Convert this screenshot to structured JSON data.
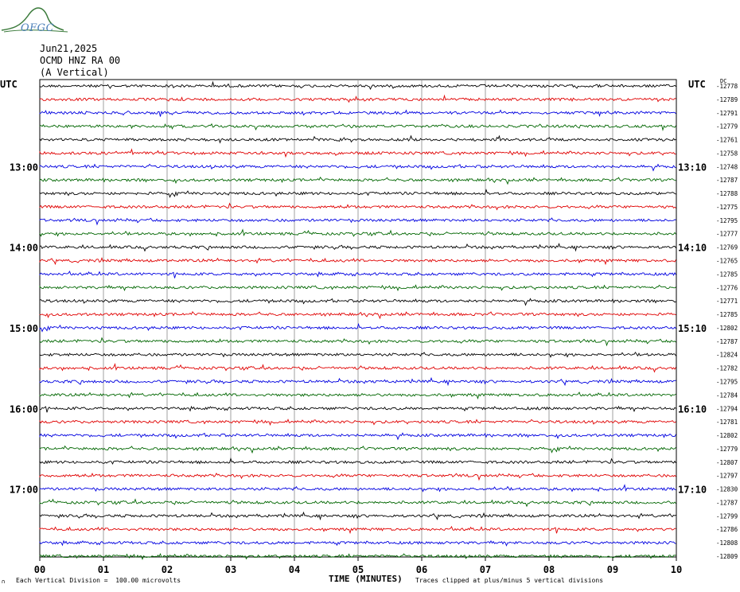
{
  "header": {
    "logo_text": "OFGC",
    "date": "Jun21,2025",
    "station": "OCMD HNZ RA 00",
    "component": "(A Vertical)"
  },
  "axes": {
    "left_unit": "UTC",
    "right_unit": "UTC",
    "x_title": "TIME (MINUTES)"
  },
  "footer": {
    "scale_note": "Each Vertical Division =  100.00 microvolts",
    "clip_note": "Traces clipped at plus/minus 5 vertical divisions",
    "corner_mark": "∩"
  },
  "colors": [
    "#000000",
    "#e00000",
    "#0000e0",
    "#006600"
  ],
  "chart_data": {
    "type": "line",
    "title": "",
    "x_ticks": [
      "00",
      "01",
      "02",
      "03",
      "04",
      "05",
      "06",
      "07",
      "08",
      "09",
      "10"
    ],
    "xlim": [
      0,
      10
    ],
    "left_hour_labels": [
      "13:00",
      "14:00",
      "15:00",
      "16:00",
      "17:00"
    ],
    "right_hour_labels": [
      "13:10",
      "14:10",
      "15:10",
      "16:10",
      "17:10"
    ],
    "right_top_label": "DC",
    "trace_offsets": [
      -12778,
      -12789,
      -12791,
      -12779,
      -12761,
      -12758,
      -12748,
      -12787,
      -12788,
      -12775,
      -12795,
      -12777,
      -12769,
      -12765,
      -12785,
      -12776,
      -12771,
      -12785,
      -12802,
      -12787,
      -12824,
      -12782,
      -12795,
      -12784,
      -12794,
      -12781,
      -12802,
      -12779,
      -12807,
      -12797,
      -12830,
      -12787,
      -12799,
      -12786,
      -12808,
      -12809
    ],
    "grid": true
  }
}
